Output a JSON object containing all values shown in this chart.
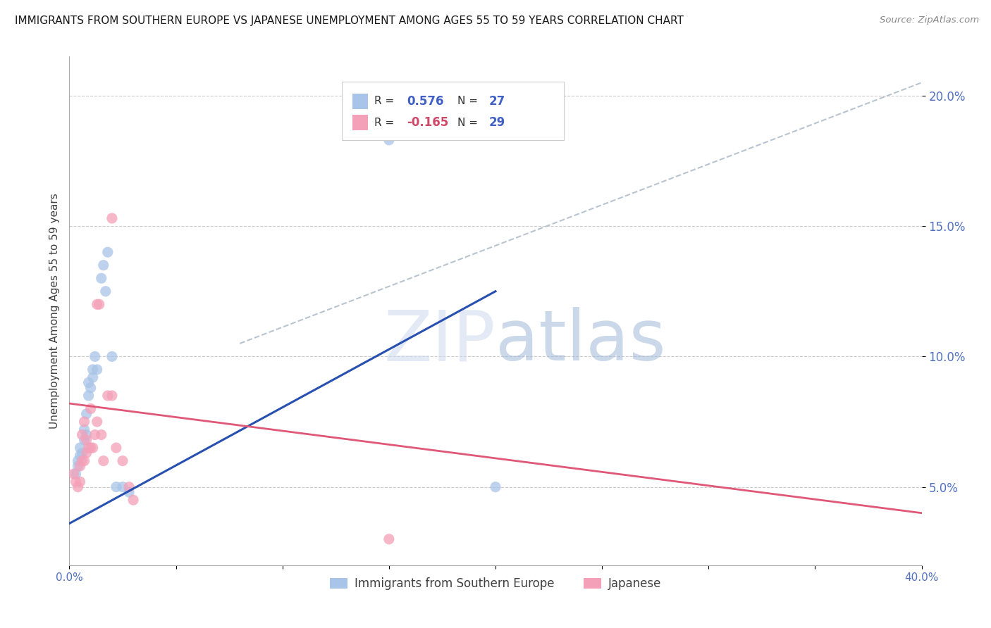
{
  "title": "IMMIGRANTS FROM SOUTHERN EUROPE VS JAPANESE UNEMPLOYMENT AMONG AGES 55 TO 59 YEARS CORRELATION CHART",
  "source": "Source: ZipAtlas.com",
  "ylabel": "Unemployment Among Ages 55 to 59 years",
  "xlim": [
    0,
    0.4
  ],
  "ylim": [
    0.02,
    0.215
  ],
  "xticks": [
    0.0,
    0.05,
    0.1,
    0.15,
    0.2,
    0.25,
    0.3,
    0.35,
    0.4
  ],
  "xtick_labels": [
    "0.0%",
    "",
    "",
    "",
    "",
    "",
    "",
    "",
    "40.0%"
  ],
  "yticks": [
    0.05,
    0.1,
    0.15,
    0.2
  ],
  "ytick_labels": [
    "5.0%",
    "10.0%",
    "15.0%",
    "20.0%"
  ],
  "r_blue": "0.576",
  "n_blue": "27",
  "r_pink": "-0.165",
  "n_pink": "29",
  "blue_color": "#a8c4e8",
  "pink_color": "#f4a0b8",
  "blue_line_color": "#2850b0",
  "pink_line_color": "#e05878",
  "gray_line_color": "#b8c4d0",
  "watermark_zip": "ZIP",
  "watermark_atlas": "atlas",
  "blue_scatter_x": [
    0.003,
    0.004,
    0.004,
    0.005,
    0.005,
    0.006,
    0.007,
    0.007,
    0.008,
    0.008,
    0.009,
    0.009,
    0.01,
    0.011,
    0.011,
    0.012,
    0.013,
    0.015,
    0.016,
    0.017,
    0.018,
    0.02,
    0.022,
    0.025,
    0.028,
    0.15,
    0.2
  ],
  "blue_scatter_y": [
    0.055,
    0.058,
    0.06,
    0.062,
    0.065,
    0.063,
    0.068,
    0.072,
    0.07,
    0.078,
    0.085,
    0.09,
    0.088,
    0.092,
    0.095,
    0.1,
    0.095,
    0.13,
    0.135,
    0.125,
    0.14,
    0.1,
    0.05,
    0.05,
    0.048,
    0.183,
    0.05
  ],
  "pink_scatter_x": [
    0.002,
    0.003,
    0.004,
    0.005,
    0.005,
    0.006,
    0.006,
    0.007,
    0.007,
    0.008,
    0.008,
    0.009,
    0.01,
    0.01,
    0.011,
    0.012,
    0.013,
    0.014,
    0.015,
    0.016,
    0.018,
    0.02,
    0.022,
    0.025,
    0.028,
    0.03,
    0.15,
    0.02,
    0.013
  ],
  "pink_scatter_y": [
    0.055,
    0.052,
    0.05,
    0.052,
    0.058,
    0.06,
    0.07,
    0.06,
    0.075,
    0.063,
    0.068,
    0.065,
    0.08,
    0.065,
    0.065,
    0.07,
    0.075,
    0.12,
    0.07,
    0.06,
    0.085,
    0.085,
    0.065,
    0.06,
    0.05,
    0.045,
    0.03,
    0.153,
    0.12
  ],
  "blue_line_x": [
    0.0,
    0.2
  ],
  "blue_line_y": [
    0.036,
    0.125
  ],
  "pink_line_x": [
    0.0,
    0.4
  ],
  "pink_line_y": [
    0.082,
    0.04
  ],
  "gray_line_x": [
    0.08,
    0.4
  ],
  "gray_line_y": [
    0.105,
    0.205
  ],
  "legend_label_blue": "Immigrants from Southern Europe",
  "legend_label_pink": "Japanese"
}
